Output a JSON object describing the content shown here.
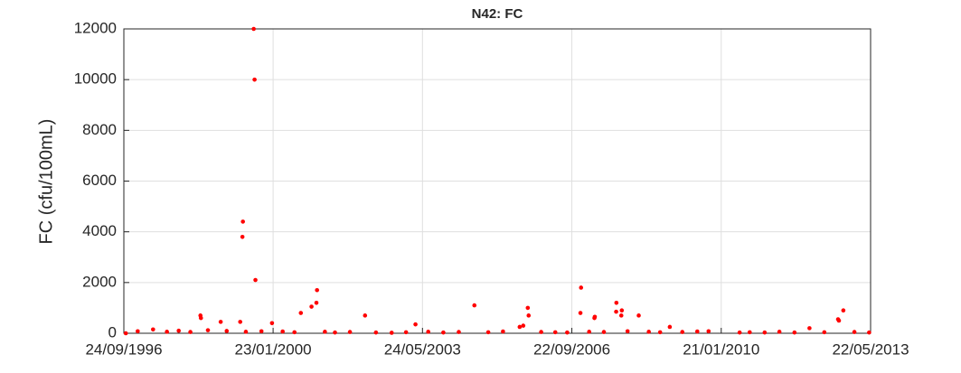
{
  "chart_data": {
    "type": "scatter",
    "title": "N42: FC",
    "ylabel": "FC (cfu/100mL)",
    "color": "#ff0000",
    "grid": true,
    "xlim": [
      "24/09/1996",
      "22/05/2013"
    ],
    "xticks": [
      "24/09/1996",
      "23/01/2000",
      "24/05/2003",
      "22/09/2006",
      "21/01/2010",
      "22/05/2013"
    ],
    "ylim": [
      0,
      12000
    ],
    "yticks": [
      0,
      2000,
      4000,
      6000,
      8000,
      10000,
      12000
    ],
    "x": [
      "18/08/1999",
      "25/08/1999",
      "01/09/1999",
      "22/05/1999",
      "18/05/1999",
      "15/01/2001",
      "10/01/2001",
      "01/12/2000",
      "05/09/2000",
      "10/02/2002",
      "20/07/2004",
      "28/09/2005",
      "05/10/2005",
      "06/12/2006",
      "01/12/2006",
      "20/09/2007",
      "18/09/2007",
      "03/11/2007",
      "30/10/2007",
      "20/03/2008",
      "12/10/2012",
      "06/09/2012",
      "30/08/2012",
      "10/06/1998",
      "14/06/1998",
      "22/11/1998",
      "30/04/1999",
      "14/01/2000",
      "28/03/2003",
      "22/08/2005",
      "24/07/2005",
      "25/03/2007",
      "28/03/2007",
      "28/11/2008",
      "10/10/1996",
      "15/01/1997",
      "20/05/1997",
      "10/09/1997",
      "15/12/1997",
      "20/03/1998",
      "10/08/1998",
      "10/01/1999",
      "15/06/1999",
      "20/10/1999",
      "10/04/2000",
      "15/07/2000",
      "20/03/2001",
      "10/06/2001",
      "10/10/2001",
      "10/05/2002",
      "15/09/2002",
      "10/01/2003",
      "10/07/2003",
      "10/11/2003",
      "15/03/2004",
      "10/11/2004",
      "10/03/2005",
      "15/01/2006",
      "10/05/2006",
      "15/08/2006",
      "10/02/2007",
      "10/06/2007",
      "20/12/2007",
      "10/06/2008",
      "10/09/2008",
      "10/03/2009",
      "10/07/2009",
      "10/10/2009",
      "20/06/2010",
      "10/09/2010",
      "10/01/2011",
      "10/05/2011",
      "10/09/2011",
      "10/01/2012",
      "10/05/2012",
      "10/01/2013",
      "10/05/2013"
    ],
    "values": [
      12000,
      10000,
      2100,
      4400,
      3800,
      1700,
      1200,
      1050,
      800,
      700,
      1100,
      1000,
      700,
      1800,
      800,
      1200,
      850,
      900,
      700,
      700,
      900,
      500,
      550,
      700,
      600,
      450,
      450,
      400,
      350,
      300,
      250,
      600,
      650,
      250,
      0,
      80,
      150,
      60,
      100,
      50,
      120,
      90,
      60,
      80,
      70,
      40,
      60,
      30,
      50,
      30,
      20,
      40,
      60,
      30,
      50,
      40,
      70,
      50,
      40,
      30,
      60,
      50,
      80,
      60,
      40,
      50,
      70,
      80,
      30,
      40,
      30,
      60,
      30,
      200,
      40,
      50,
      30
    ]
  }
}
